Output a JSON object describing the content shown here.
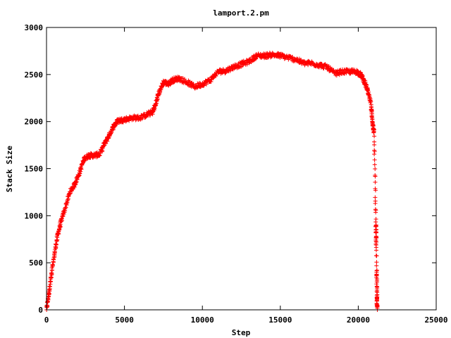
{
  "chart_data": {
    "type": "scatter",
    "title": "lamport.2.pm",
    "xlabel": "Step",
    "ylabel": "Stack Size",
    "xlim": [
      0,
      25000
    ],
    "ylim": [
      0,
      3000
    ],
    "xticks": [
      0,
      5000,
      10000,
      15000,
      20000,
      25000
    ],
    "yticks": [
      0,
      500,
      1000,
      1500,
      2000,
      2500,
      3000
    ],
    "grid": false,
    "legend": "none",
    "marker": "plus",
    "series_color": "#ff0000",
    "anchors": [
      [
        0,
        0
      ],
      [
        150,
        180
      ],
      [
        300,
        350
      ],
      [
        500,
        580
      ],
      [
        700,
        780
      ],
      [
        900,
        920
      ],
      [
        1200,
        1080
      ],
      [
        1500,
        1250
      ],
      [
        1800,
        1330
      ],
      [
        2100,
        1450
      ],
      [
        2400,
        1600
      ],
      [
        2700,
        1640
      ],
      [
        3000,
        1640
      ],
      [
        3400,
        1650
      ],
      [
        3700,
        1760
      ],
      [
        4000,
        1850
      ],
      [
        4300,
        1950
      ],
      [
        4600,
        2010
      ],
      [
        5000,
        2020
      ],
      [
        5500,
        2040
      ],
      [
        6000,
        2040
      ],
      [
        6500,
        2080
      ],
      [
        6800,
        2100
      ],
      [
        7000,
        2180
      ],
      [
        7200,
        2300
      ],
      [
        7500,
        2420
      ],
      [
        7800,
        2400
      ],
      [
        8100,
        2440
      ],
      [
        8500,
        2460
      ],
      [
        9000,
        2420
      ],
      [
        9500,
        2370
      ],
      [
        10000,
        2400
      ],
      [
        10500,
        2440
      ],
      [
        11000,
        2530
      ],
      [
        11500,
        2540
      ],
      [
        12000,
        2580
      ],
      [
        12500,
        2610
      ],
      [
        13000,
        2640
      ],
      [
        13500,
        2700
      ],
      [
        14000,
        2700
      ],
      [
        14500,
        2710
      ],
      [
        15000,
        2700
      ],
      [
        15500,
        2680
      ],
      [
        16000,
        2660
      ],
      [
        16500,
        2620
      ],
      [
        17000,
        2620
      ],
      [
        17500,
        2600
      ],
      [
        18000,
        2580
      ],
      [
        18500,
        2510
      ],
      [
        19000,
        2530
      ],
      [
        19500,
        2530
      ],
      [
        19900,
        2530
      ],
      [
        20200,
        2490
      ],
      [
        20400,
        2420
      ],
      [
        20600,
        2330
      ],
      [
        20800,
        2200
      ],
      [
        20900,
        2000
      ],
      [
        21000,
        1900
      ],
      [
        21050,
        1600
      ],
      [
        21100,
        1200
      ],
      [
        21130,
        900
      ],
      [
        21150,
        700
      ],
      [
        21180,
        400
      ],
      [
        21200,
        150
      ],
      [
        21210,
        0
      ]
    ],
    "density_per_segment": 22,
    "noise": 25
  }
}
